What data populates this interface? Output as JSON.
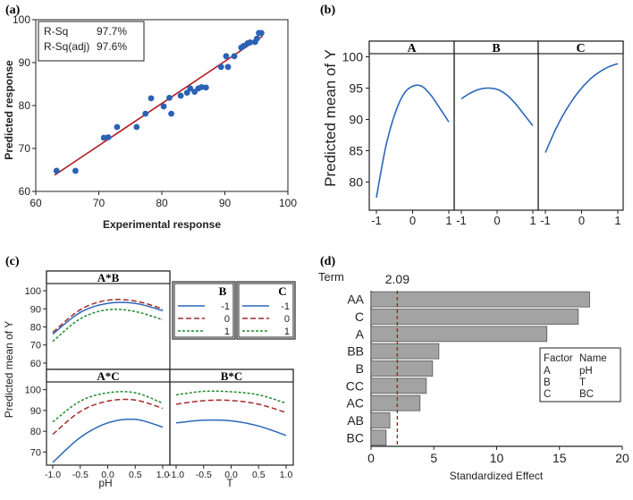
{
  "colors": {
    "point": "#2a62b5",
    "fit": "#b0191e",
    "blue": "#2b67b8",
    "red": "#a52a2a",
    "green": "#1f8a2e",
    "bar": "#a3a3a3",
    "ref": "#b0191e"
  },
  "chart_data": [
    {
      "panel": "(a)",
      "type": "scatter",
      "xlabel": "Experimental response",
      "ylabel": "Predicted response",
      "xlim": [
        60,
        100
      ],
      "ylim": [
        60,
        100
      ],
      "xticks": [
        60,
        70,
        80,
        90,
        100
      ],
      "yticks": [
        60,
        70,
        80,
        90,
        100
      ],
      "stats": [
        {
          "label": "R-Sq",
          "value": "97.7%"
        },
        {
          "label": "R-Sq(adj)",
          "value": "97.6%"
        }
      ],
      "fit_line": {
        "x": [
          63,
          96
        ],
        "y": [
          63.8,
          96.2
        ]
      },
      "points": [
        [
          63.3,
          64.8
        ],
        [
          66.3,
          64.8
        ],
        [
          70.8,
          72.5
        ],
        [
          71.5,
          72.6
        ],
        [
          72.9,
          75.0
        ],
        [
          76.0,
          75.0
        ],
        [
          77.4,
          78.1
        ],
        [
          78.3,
          81.7
        ],
        [
          80.3,
          79.8
        ],
        [
          81.2,
          81.8
        ],
        [
          81.5,
          78.1
        ],
        [
          83.0,
          82.3
        ],
        [
          84.0,
          83.0
        ],
        [
          84.5,
          84.0
        ],
        [
          85.2,
          83.2
        ],
        [
          85.8,
          84.0
        ],
        [
          86.3,
          84.3
        ],
        [
          87.0,
          84.2
        ],
        [
          89.4,
          89.0
        ],
        [
          90.2,
          91.5
        ],
        [
          90.5,
          89.0
        ],
        [
          91.5,
          91.5
        ],
        [
          92.6,
          93.5
        ],
        [
          93.0,
          93.9
        ],
        [
          93.6,
          94.5
        ],
        [
          94.0,
          94.7
        ],
        [
          94.8,
          94.8
        ],
        [
          95.1,
          95.6
        ],
        [
          95.4,
          96.9
        ],
        [
          95.8,
          96.9
        ]
      ]
    },
    {
      "panel": "(b)",
      "type": "line",
      "ylabel": "Predicted mean of Y",
      "ylim": [
        75.5,
        100.5
      ],
      "yticks": [
        80,
        85,
        90,
        95,
        100
      ],
      "xticks": [
        "-1",
        "0",
        "1"
      ],
      "facets": [
        {
          "label": "A",
          "x": [
            -1,
            -0.75,
            -0.5,
            -0.25,
            0,
            0.25,
            0.5,
            0.75,
            1
          ],
          "y": [
            77.5,
            85.4,
            90.7,
            94.0,
            95.3,
            95.3,
            93.9,
            91.8,
            89.6
          ]
        },
        {
          "label": "B",
          "x": [
            -1,
            -0.75,
            -0.5,
            -0.25,
            0,
            0.25,
            0.5,
            0.75,
            1
          ],
          "y": [
            93.3,
            94.2,
            94.8,
            95.0,
            94.8,
            94.0,
            92.6,
            90.8,
            89.0
          ]
        },
        {
          "label": "C",
          "x": [
            -1,
            -0.75,
            -0.5,
            -0.25,
            0,
            0.25,
            0.5,
            0.75,
            1
          ],
          "y": [
            84.7,
            88.0,
            90.8,
            93.1,
            95.0,
            96.5,
            97.6,
            98.4,
            98.9
          ]
        }
      ]
    },
    {
      "panel": "(c)",
      "type": "line",
      "ylabel": "Predicted mean of Y",
      "xlabels": [
        "pH",
        "T"
      ],
      "xticks": [
        "-1.0",
        "-0.5",
        "0.0",
        "0.5",
        "1.0"
      ],
      "yticks_top": [
        60,
        70,
        80,
        90,
        100
      ],
      "yticks_bottom": [
        70,
        80,
        90,
        100
      ],
      "legends": [
        {
          "title": "B",
          "entries": [
            "-1",
            "0",
            "1"
          ]
        },
        {
          "title": "C",
          "entries": [
            "-1",
            "0",
            "1"
          ]
        }
      ],
      "facets": [
        {
          "label": "A*B",
          "ylim": [
            58,
            102
          ],
          "x": [
            -1,
            -0.5,
            0,
            0.5,
            1
          ],
          "series": [
            {
              "name": "-1",
              "color": "blue",
              "y": [
                76.0,
                88.0,
                93.0,
                93.0,
                89.0
              ]
            },
            {
              "name": "0",
              "color": "red",
              "y": [
                77.0,
                89.5,
                94.8,
                94.3,
                90.0
              ]
            },
            {
              "name": "1",
              "color": "green",
              "y": [
                72.0,
                84.5,
                89.5,
                88.5,
                84.0
              ]
            }
          ]
        },
        {
          "label": "A*C",
          "ylim": [
            65,
            102
          ],
          "x": [
            -1,
            -0.5,
            0,
            0.5,
            1
          ],
          "series": [
            {
              "name": "-1",
              "color": "blue",
              "y": [
                65.0,
                77.0,
                84.0,
                85.7,
                82.0
              ]
            },
            {
              "name": "0",
              "color": "red",
              "y": [
                78.5,
                89.5,
                94.5,
                95.0,
                91.0
              ]
            },
            {
              "name": "1",
              "color": "green",
              "y": [
                84.5,
                94.5,
                98.5,
                98.5,
                93.5
              ]
            }
          ]
        },
        {
          "label": "B*C",
          "ylim": [
            65,
            102
          ],
          "x": [
            -1,
            -0.5,
            0,
            0.5,
            1
          ],
          "series": [
            {
              "name": "-1",
              "color": "blue",
              "y": [
                84.0,
                85.3,
                85.0,
                82.5,
                78.0
              ]
            },
            {
              "name": "0",
              "color": "red",
              "y": [
                93.0,
                94.7,
                94.8,
                93.0,
                89.0
              ]
            },
            {
              "name": "1",
              "color": "green",
              "y": [
                97.5,
                99.2,
                99.0,
                97.5,
                93.5
              ]
            }
          ]
        }
      ]
    },
    {
      "panel": "(d)",
      "type": "bar",
      "orientation": "horizontal",
      "term_label": "Term",
      "xlabel": "Standardized Effect",
      "xlim": [
        0,
        20
      ],
      "xticks": [
        0,
        5,
        10,
        15,
        20
      ],
      "ref_value": 2.09,
      "ref_label": "2.09",
      "categories": [
        "AA",
        "C",
        "A",
        "BB",
        "B",
        "CC",
        "AC",
        "AB",
        "BC"
      ],
      "values": [
        17.4,
        16.5,
        14.0,
        5.4,
        4.9,
        4.4,
        3.9,
        1.5,
        1.2
      ],
      "factor_table": {
        "header": [
          "Factor",
          "Name"
        ],
        "rows": [
          [
            "A",
            "pH"
          ],
          [
            "B",
            "T"
          ],
          [
            "C",
            "BC"
          ]
        ]
      }
    }
  ]
}
